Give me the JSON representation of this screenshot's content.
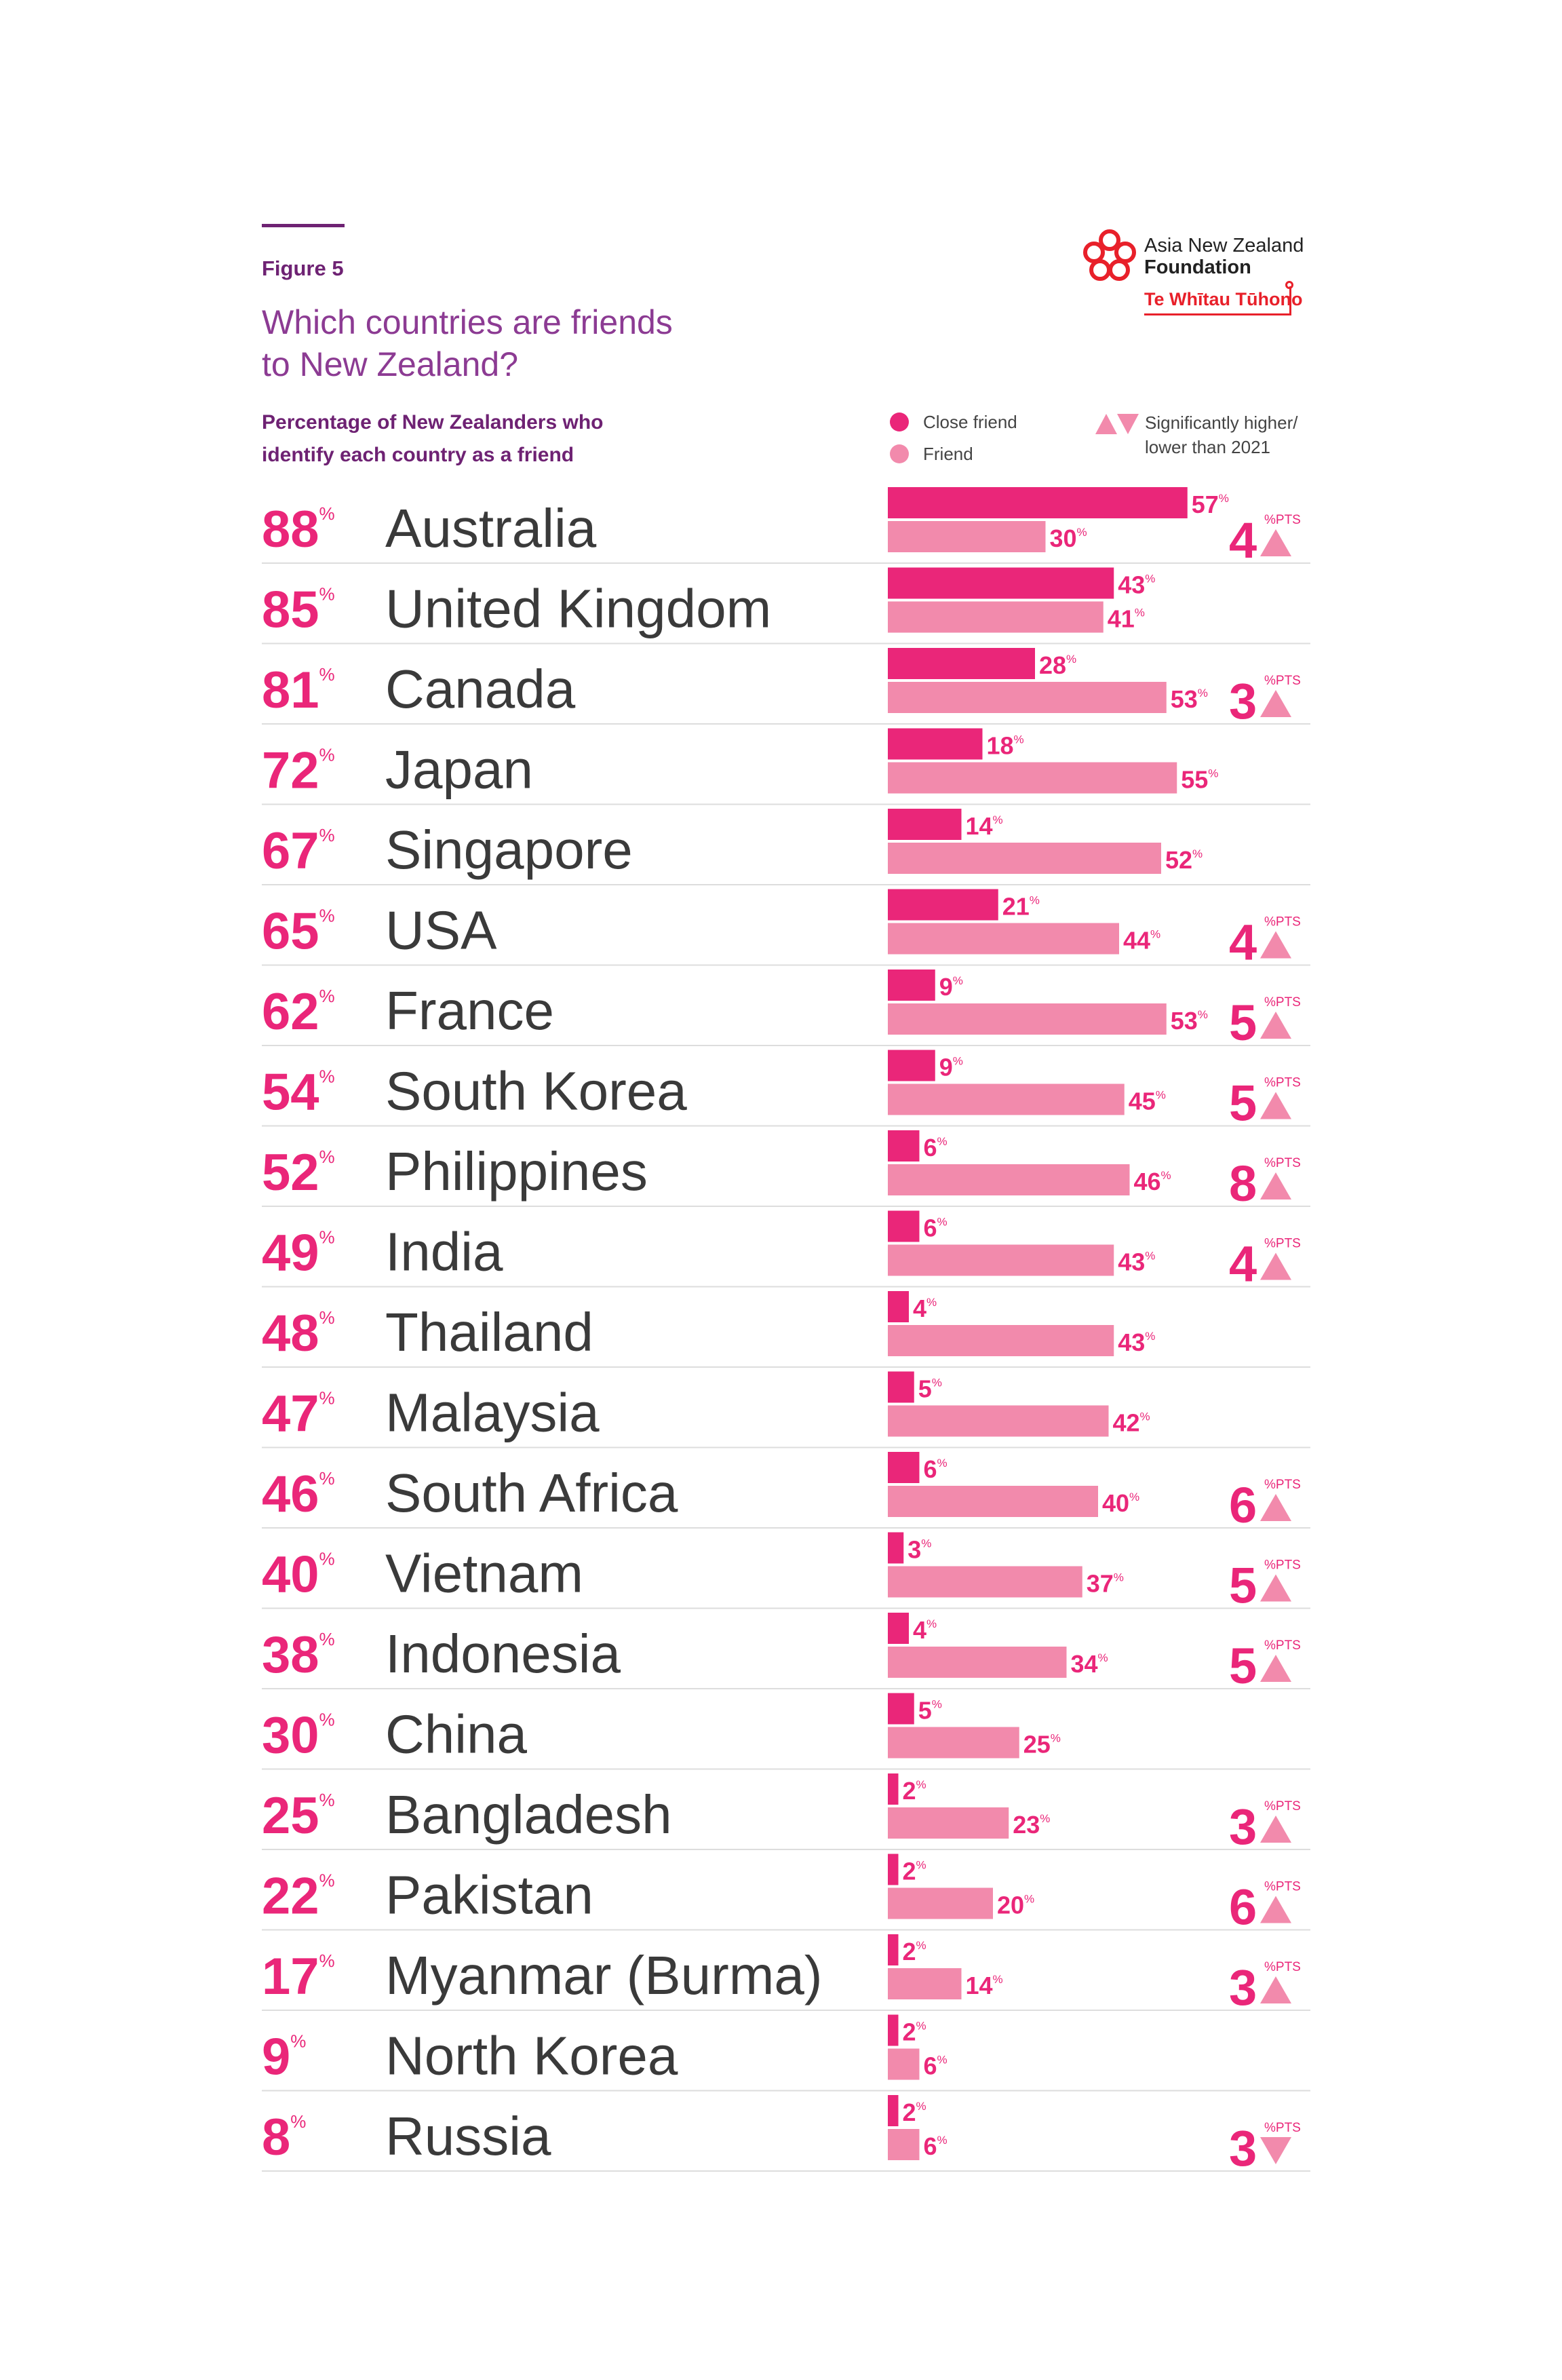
{
  "figure_label": "Figure 5",
  "title_lines": [
    "Which countries are friends",
    "to New Zealand?"
  ],
  "subtitle_lines": [
    "Percentage of New Zealanders who",
    "identify each country as a friend"
  ],
  "logo": {
    "line1": "Asia New Zealand",
    "line2": "Foundation",
    "line3": "Te Whītau Tūhono"
  },
  "legend": {
    "close_friend": "Close friend",
    "friend": "Friend",
    "significance_lines": [
      "Significantly higher/",
      "lower than 2021"
    ]
  },
  "colors": {
    "close_friend": "#ea2679",
    "friend": "#f28aac",
    "total_text": "#ea2679",
    "country_text": "#3a3a3a",
    "accent_purple": "#6e2273",
    "change_triangle": "#f28aac",
    "change_number": "#ea2679",
    "logo_red": "#e8202a"
  },
  "chart_data": {
    "type": "bar",
    "orientation": "horizontal",
    "stacked": false,
    "unit_symbol": "%",
    "change_unit": "%PTS",
    "categories": [
      "Australia",
      "United Kingdom",
      "Canada",
      "Japan",
      "Singapore",
      "USA",
      "France",
      "South Korea",
      "Philippines",
      "India",
      "Thailand",
      "Malaysia",
      "South Africa",
      "Vietnam",
      "Indonesia",
      "China",
      "Bangladesh",
      "Pakistan",
      "Myanmar (Burma)",
      "North Korea",
      "Russia"
    ],
    "totals": [
      88,
      85,
      81,
      72,
      67,
      65,
      62,
      54,
      52,
      49,
      48,
      47,
      46,
      40,
      38,
      30,
      25,
      22,
      17,
      9,
      8
    ],
    "series": [
      {
        "name": "Close friend",
        "values": [
          57,
          43,
          28,
          18,
          14,
          21,
          9,
          9,
          6,
          6,
          4,
          5,
          6,
          3,
          4,
          5,
          2,
          2,
          2,
          2,
          2
        ]
      },
      {
        "name": "Friend",
        "values": [
          30,
          41,
          53,
          55,
          52,
          44,
          53,
          45,
          46,
          43,
          43,
          42,
          40,
          37,
          34,
          25,
          23,
          20,
          14,
          6,
          6
        ]
      }
    ],
    "change_vs_2021": [
      {
        "value": 4,
        "direction": "up"
      },
      null,
      {
        "value": 3,
        "direction": "up"
      },
      null,
      null,
      {
        "value": 4,
        "direction": "up"
      },
      {
        "value": 5,
        "direction": "up"
      },
      {
        "value": 5,
        "direction": "up"
      },
      {
        "value": 8,
        "direction": "up"
      },
      {
        "value": 4,
        "direction": "up"
      },
      null,
      null,
      {
        "value": 6,
        "direction": "up"
      },
      {
        "value": 5,
        "direction": "up"
      },
      {
        "value": 5,
        "direction": "up"
      },
      null,
      {
        "value": 3,
        "direction": "up"
      },
      {
        "value": 6,
        "direction": "up"
      },
      {
        "value": 3,
        "direction": "up"
      },
      null,
      {
        "value": 3,
        "direction": "down"
      }
    ],
    "xlim": [
      0,
      100
    ],
    "grid": false,
    "legend_position": "top-right"
  }
}
